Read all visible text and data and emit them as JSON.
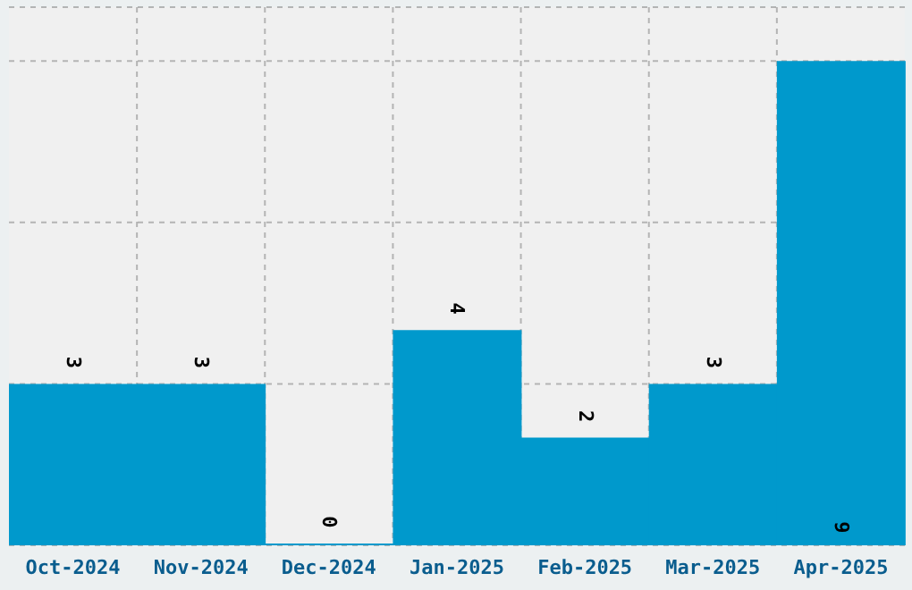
{
  "chart_data": {
    "type": "bar",
    "categories": [
      "Oct-2024",
      "Nov-2024",
      "Dec-2024",
      "Jan-2025",
      "Feb-2025",
      "Mar-2025",
      "Apr-2025"
    ],
    "values": [
      3,
      3,
      0,
      4,
      2,
      3,
      9
    ],
    "color": "#0099cc",
    "ylim": [
      0,
      10
    ],
    "tick_labels": "x",
    "grid": true,
    "data_labels": true,
    "legend": false
  }
}
